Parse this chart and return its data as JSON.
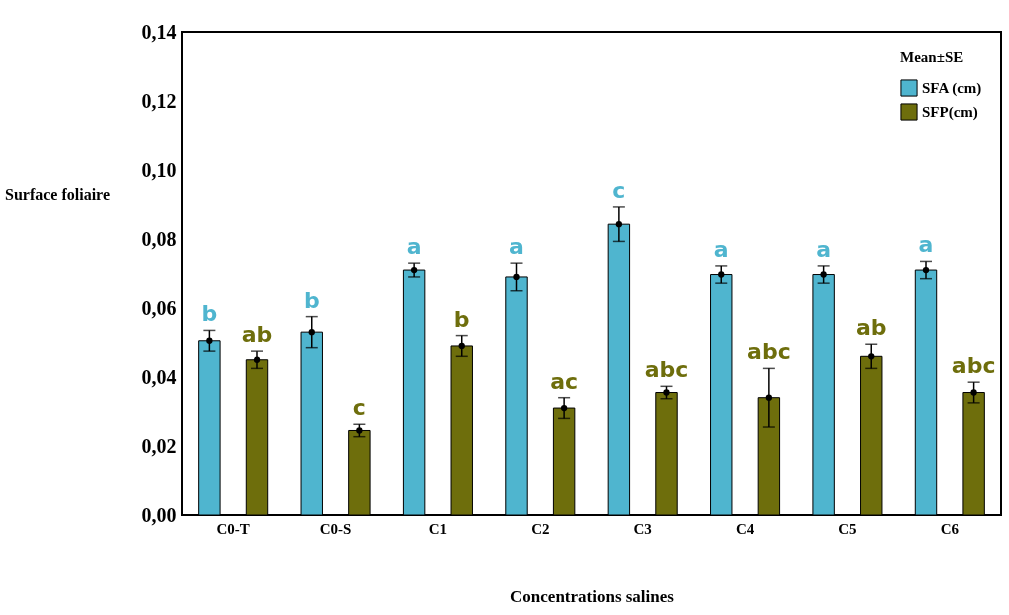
{
  "chart_data": {
    "type": "bar",
    "xlabel": "Concentrations salines",
    "ylabel": "Surface foliaire",
    "legend_title": "Mean±SE",
    "legend": "top right",
    "marker": "circle",
    "categories": [
      "C0-T",
      "C0-S",
      "C1",
      "C2",
      "C3",
      "C4",
      "C5",
      "C6"
    ],
    "series": [
      {
        "name": "SFA (cm)",
        "color": "#4fb5cf",
        "values": [
          0.0505,
          0.053,
          0.071,
          0.069,
          0.0843,
          0.0697,
          0.0697,
          0.071
        ],
        "errors": [
          0.003,
          0.0045,
          0.002,
          0.004,
          0.005,
          0.0025,
          0.0025,
          0.0025
        ],
        "value_labels": [
          "b",
          "b",
          "a",
          "a",
          "c",
          "a",
          "a",
          "a"
        ]
      },
      {
        "name": "SFP(cm)",
        "color": "#6e6e0c",
        "values": [
          0.045,
          0.0245,
          0.049,
          0.031,
          0.0355,
          0.034,
          0.046,
          0.0355
        ],
        "errors": [
          0.0025,
          0.0018,
          0.003,
          0.003,
          0.0018,
          0.0085,
          0.0035,
          0.003
        ],
        "value_labels": [
          "ab",
          "c",
          "b",
          "ac",
          "abc",
          "abc",
          "ab",
          "abc"
        ]
      },
      {
        "type": "scatter",
        "color": "#000000",
        "x": [
          "C0-T",
          "C0-S",
          "C1",
          "C2",
          "C3",
          "C4",
          "C5",
          "C6"
        ],
        "values": [
          0.0505,
          0.053,
          0.071,
          0.069,
          0.0843,
          0.0697,
          0.0697,
          0.071
        ]
      },
      {
        "type": "scatter",
        "color": "#000000",
        "x": [
          "C0-T",
          "C0-S",
          "C1",
          "C2",
          "C3",
          "C4",
          "C5",
          "C6"
        ],
        "values": [
          0.045,
          0.0245,
          0.049,
          0.031,
          0.0355,
          0.034,
          0.046,
          0.0355
        ]
      }
    ],
    "ylim": [
      0,
      0.14
    ],
    "yticks": [
      {
        "value": 0,
        "label": "0,00"
      },
      {
        "value": 0.02,
        "label": "0,02"
      },
      {
        "value": 0.04,
        "label": "0,04"
      },
      {
        "value": 0.06,
        "label": "0,06"
      },
      {
        "value": 0.08,
        "label": "0,08"
      },
      {
        "value": 0.1,
        "label": "0,10"
      },
      {
        "value": 0.12,
        "label": "0,12"
      },
      {
        "value": 0.14,
        "label": "0,14"
      }
    ]
  }
}
